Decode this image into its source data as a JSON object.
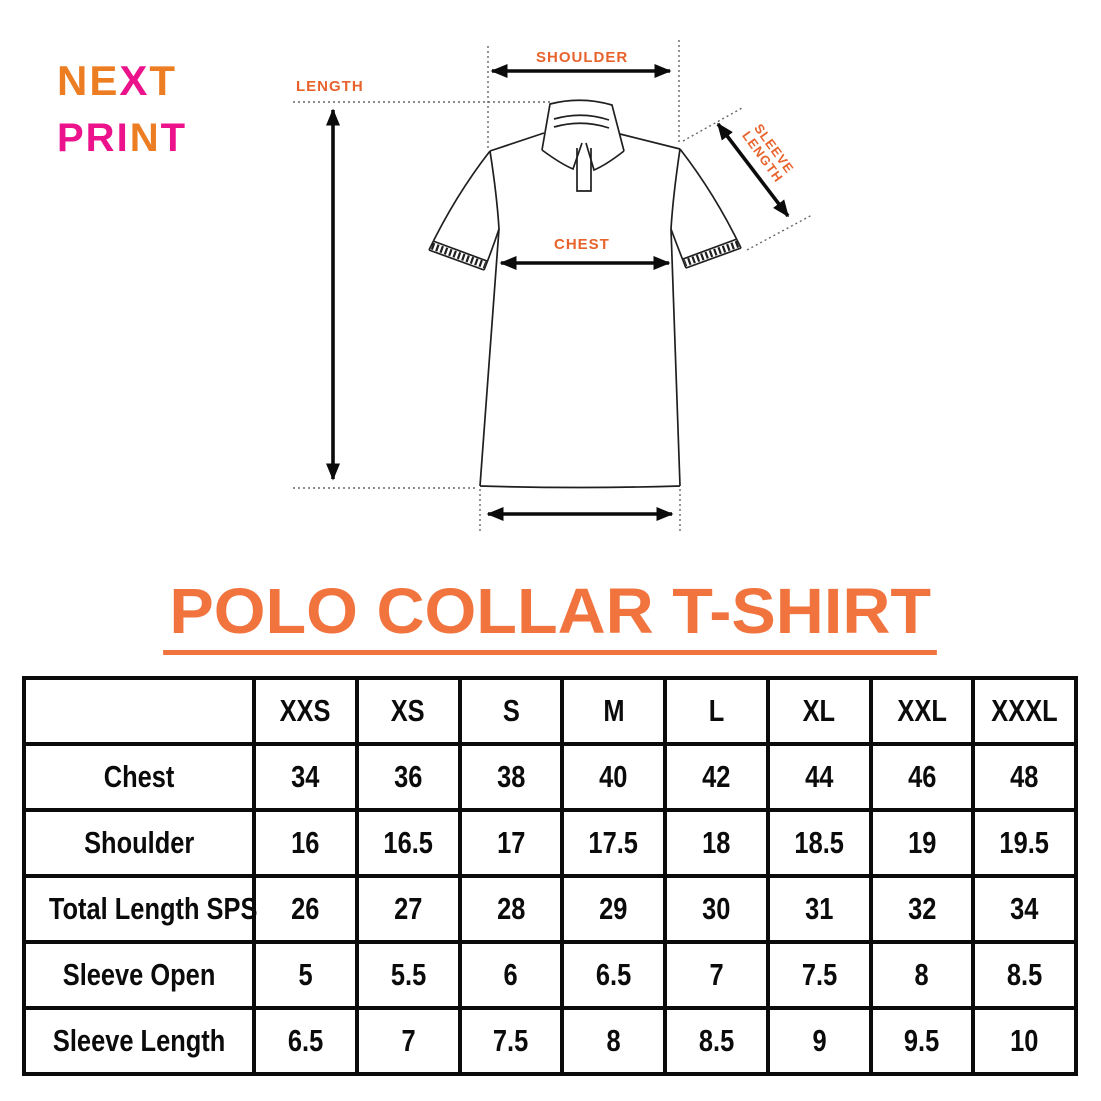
{
  "brand": {
    "colors": {
      "orange": "#ED7D23",
      "pink": "#EC128C"
    },
    "line1": [
      {
        "text": "NE",
        "color": "#ED7D23"
      },
      {
        "text": "X",
        "color": "#EC128C"
      },
      {
        "text": "T",
        "color": "#ED7D23"
      }
    ],
    "line2": [
      {
        "text": "PRI",
        "color": "#EC128C"
      },
      {
        "text": "N",
        "color": "#ED7D23"
      },
      {
        "text": "T",
        "color": "#EC128C"
      }
    ]
  },
  "diagram": {
    "label_color": "#E8632C",
    "labels": {
      "length": "LENGTH",
      "shoulder": "SHOULDER",
      "chest": "CHEST",
      "sleeve_line1": "SLEEVE",
      "sleeve_line2": "LENGTH"
    }
  },
  "title": {
    "text": "POLO COLLAR T-SHIRT",
    "color": "#F1743F"
  },
  "size_table": {
    "columns": [
      "",
      "XXS",
      "XS",
      "S",
      "M",
      "L",
      "XL",
      "XXL",
      "XXXL"
    ],
    "rows": [
      {
        "label": "Chest",
        "values": [
          "34",
          "36",
          "38",
          "40",
          "42",
          "44",
          "46",
          "48"
        ]
      },
      {
        "label": "Shoulder",
        "values": [
          "16",
          "16.5",
          "17",
          "17.5",
          "18",
          "18.5",
          "19",
          "19.5"
        ]
      },
      {
        "label": "Total Length SPS",
        "values": [
          "26",
          "27",
          "28",
          "29",
          "30",
          "31",
          "32",
          "34"
        ]
      },
      {
        "label": "Sleeve Open",
        "values": [
          "5",
          "5.5",
          "6",
          "6.5",
          "7",
          "7.5",
          "8",
          "8.5"
        ]
      },
      {
        "label": "Sleeve Length",
        "values": [
          "6.5",
          "7",
          "7.5",
          "8",
          "8.5",
          "9",
          "9.5",
          "10"
        ]
      }
    ]
  },
  "chart_data": {
    "type": "table",
    "title": "POLO COLLAR T-SHIRT",
    "categories": [
      "XXS",
      "XS",
      "S",
      "M",
      "L",
      "XL",
      "XXL",
      "XXXL"
    ],
    "series": [
      {
        "name": "Chest",
        "values": [
          34,
          36,
          38,
          40,
          42,
          44,
          46,
          48
        ]
      },
      {
        "name": "Shoulder",
        "values": [
          16,
          16.5,
          17,
          17.5,
          18,
          18.5,
          19,
          19.5
        ]
      },
      {
        "name": "Total Length SPS",
        "values": [
          26,
          27,
          28,
          29,
          30,
          31,
          32,
          34
        ]
      },
      {
        "name": "Sleeve Open",
        "values": [
          5,
          5.5,
          6,
          6.5,
          7,
          7.5,
          8,
          8.5
        ]
      },
      {
        "name": "Sleeve Length",
        "values": [
          6.5,
          7,
          7.5,
          8,
          8.5,
          9,
          9.5,
          10
        ]
      }
    ]
  }
}
